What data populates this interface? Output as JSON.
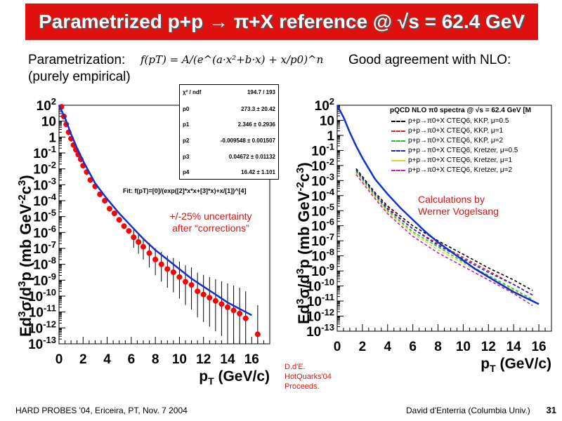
{
  "slide": {
    "title": "Parametrized p+p → π+X reference @ √s = 62.4 GeV",
    "left_heading": "Parametrization:",
    "left_subheading": "(purely empirical)",
    "formula": "f(pT) = A/(e^(a·x²+b·x) + x/p0)^n",
    "right_heading": "Good agreement with NLO:",
    "uncertainty_note_1": "+/-25% uncertainty",
    "uncertainty_note_2": "after “corrections”",
    "calc_note_1": "Calculations by",
    "calc_note_2": "Werner Vogelsang",
    "ref_1": "D.d'E.",
    "ref_2": "HotQuarks'04",
    "ref_3": "Proceeds.",
    "footer_left": "HARD PROBES '04, Ericeira, PT, Nov. 7 2004",
    "footer_right": "David d'Enterria (Columbia Univ.)",
    "page_number": "31",
    "colors": {
      "title_bg": "#e0100f",
      "data": "#ff0000",
      "fit": "#1030d0"
    }
  },
  "fit_stats": {
    "rows": [
      {
        "key": "χ² / ndf",
        "value": "194.7 / 193"
      },
      {
        "key": "p0",
        "value": "273.3 ± 20.42"
      },
      {
        "key": "p1",
        "value": "2.346 ± 0.2936"
      },
      {
        "key": "p2",
        "value": "-0.009548 ± 0.001507"
      },
      {
        "key": "p3",
        "value": "0.04672 ± 0.01132"
      },
      {
        "key": "p4",
        "value": "16.42 ± 1.101"
      }
    ],
    "fit_label": "Fit: f(pT)=[0]/(exp([2]*x*x+[3]*x)+x/[1])^[4]"
  },
  "chart_data": [
    {
      "type": "scatter",
      "title": "",
      "xlabel": "pT (GeV/c)",
      "ylabel": "Ed3σ/d3p (mb GeV-2c3)",
      "xlim": [
        0,
        17.5
      ],
      "ylim_log10": [
        -13,
        2
      ],
      "log_y": true,
      "x_ticks": [
        "0",
        "2",
        "4",
        "6",
        "8",
        "10",
        "12",
        "14",
        "16"
      ],
      "y_ticks": [
        "10^2",
        "10",
        "1",
        "10^-1",
        "10^-2",
        "10^-3",
        "10^-4",
        "10^-5",
        "10^-6",
        "10^-7",
        "10^-8",
        "10^-9",
        "10^-10",
        "10^-11",
        "10^-12",
        "10^-13"
      ],
      "grid": false,
      "series": [
        {
          "kind": "points",
          "x": [
            0.2,
            0.4,
            0.6,
            0.8,
            1.0,
            1.2,
            1.4,
            1.6,
            1.8,
            2.0,
            2.3,
            2.6,
            3.0,
            3.4,
            3.8,
            4.2,
            4.6,
            5.0,
            5.4,
            5.8,
            6.2,
            6.6,
            7.0,
            7.5,
            8.0,
            8.5,
            9.0,
            9.5,
            10.0,
            10.5,
            11.0,
            11.5,
            12.0,
            12.5,
            13.0,
            13.5,
            14.0,
            14.5,
            15.0,
            15.5,
            16.5
          ],
          "y_log10": [
            1.9,
            1.3,
            0.8,
            0.3,
            -0.1,
            -0.5,
            -0.8,
            -1.1,
            -1.4,
            -1.8,
            -2.2,
            -2.7,
            -3.1,
            -3.6,
            -4.0,
            -4.5,
            -4.8,
            -5.2,
            -5.6,
            -5.9,
            -6.3,
            -6.6,
            -6.9,
            -7.3,
            -7.7,
            -8.0,
            -8.3,
            -8.5,
            -8.8,
            -9.1,
            -9.3,
            -9.7,
            -9.9,
            -10.1,
            -10.3,
            -10.5,
            -10.7,
            -10.9,
            -11.1,
            -11.4,
            -12.4
          ]
        },
        {
          "kind": "fit-line",
          "x": [
            0,
            0.5,
            1,
            1.5,
            2,
            3,
            4,
            5,
            6,
            7,
            8,
            9,
            10,
            11,
            12,
            13,
            14,
            15,
            16
          ],
          "y_log10": [
            2.0,
            1.2,
            0.2,
            -0.7,
            -1.5,
            -2.9,
            -3.9,
            -4.8,
            -5.6,
            -6.4,
            -7.1,
            -7.7,
            -8.3,
            -8.9,
            -9.4,
            -9.9,
            -10.4,
            -10.8,
            -11.2
          ]
        }
      ]
    },
    {
      "type": "line",
      "title": "pQCD NLO π0 spectra @ √s = 62.4 GeV [M",
      "xlabel": "pT (GeV/c)",
      "ylabel": "Ed3σ/d3p (mb GeV-2c3)",
      "xlim": [
        0,
        17
      ],
      "ylim_log10": [
        -13,
        2
      ],
      "log_y": true,
      "x_ticks": [
        "0",
        "2",
        "4",
        "6",
        "8",
        "10",
        "12",
        "14",
        "16"
      ],
      "y_ticks": [
        "10^2",
        "10",
        "1",
        "10^-1",
        "10^-2",
        "10^-3",
        "10^-4",
        "10^-5",
        "10^-6",
        "10^-7",
        "10^-8",
        "10^-9",
        "10^-10",
        "10^-11",
        "10^-12",
        "10^-13"
      ],
      "grid": false,
      "legend_position": "top-right",
      "series": [
        {
          "name": "p+p→π0+X CTEQ6, KKP, μ=0.5",
          "color": "#000000",
          "x": [
            1.5,
            3,
            4,
            6,
            8,
            10,
            12,
            14,
            15.5
          ],
          "y_log10": [
            -2.2,
            -3.8,
            -4.7,
            -6.0,
            -7.0,
            -7.9,
            -8.8,
            -9.6,
            -10.3
          ]
        },
        {
          "name": "p+p→π0+X CTEQ6, KKP, μ=1",
          "color": "#e02020",
          "x": [
            1.5,
            3,
            4,
            6,
            8,
            10,
            12,
            14,
            15.5
          ],
          "y_log10": [
            -2.3,
            -3.9,
            -4.8,
            -6.2,
            -7.2,
            -8.1,
            -9.0,
            -9.9,
            -10.6
          ]
        },
        {
          "name": "p+p→π0+X CTEQ6, KKP, μ=2",
          "color": "#20c020",
          "x": [
            1.5,
            3,
            4,
            6,
            8,
            10,
            12,
            14,
            15.5
          ],
          "y_log10": [
            -2.4,
            -4.0,
            -5.0,
            -6.4,
            -7.4,
            -8.4,
            -9.3,
            -10.2,
            -10.9
          ]
        },
        {
          "name": "p+p→π0+X CTEQ6, Kretzer, μ=0.5",
          "color": "#2020c0",
          "x": [
            1.5,
            3,
            4,
            6,
            8,
            10,
            12,
            14,
            15.5
          ],
          "y_log10": [
            -2.3,
            -3.9,
            -4.9,
            -6.2,
            -7.3,
            -8.2,
            -9.1,
            -9.9,
            -10.6
          ]
        },
        {
          "name": "p+p→π0+X CTEQ6, Kretzer, μ=1",
          "color": "#e0d020",
          "x": [
            1.5,
            3,
            4,
            6,
            8,
            10,
            12,
            14,
            15.5
          ],
          "y_log10": [
            -2.5,
            -4.1,
            -5.1,
            -6.5,
            -7.6,
            -8.5,
            -9.4,
            -10.3,
            -11.0
          ]
        },
        {
          "name": "p+p→π0+X CTEQ6, Kretzer, μ=2",
          "color": "#c020c0",
          "x": [
            1.5,
            3,
            4,
            6,
            8,
            10,
            12,
            14,
            15.5
          ],
          "y_log10": [
            -2.6,
            -4.2,
            -5.2,
            -6.7,
            -7.8,
            -8.7,
            -9.6,
            -10.5,
            -11.3
          ]
        },
        {
          "name": "",
          "color": "#1030d0",
          "x": [
            0,
            0.5,
            1,
            1.5,
            2,
            3,
            4,
            5,
            6,
            7,
            8,
            9,
            10,
            11,
            12,
            13,
            14,
            15,
            16
          ],
          "y_log10": [
            2.0,
            1.2,
            0.2,
            -0.7,
            -1.5,
            -2.9,
            -3.9,
            -4.8,
            -5.6,
            -6.4,
            -7.1,
            -7.7,
            -8.3,
            -8.9,
            -9.4,
            -9.9,
            -10.4,
            -10.8,
            -11.2
          ]
        }
      ]
    }
  ]
}
